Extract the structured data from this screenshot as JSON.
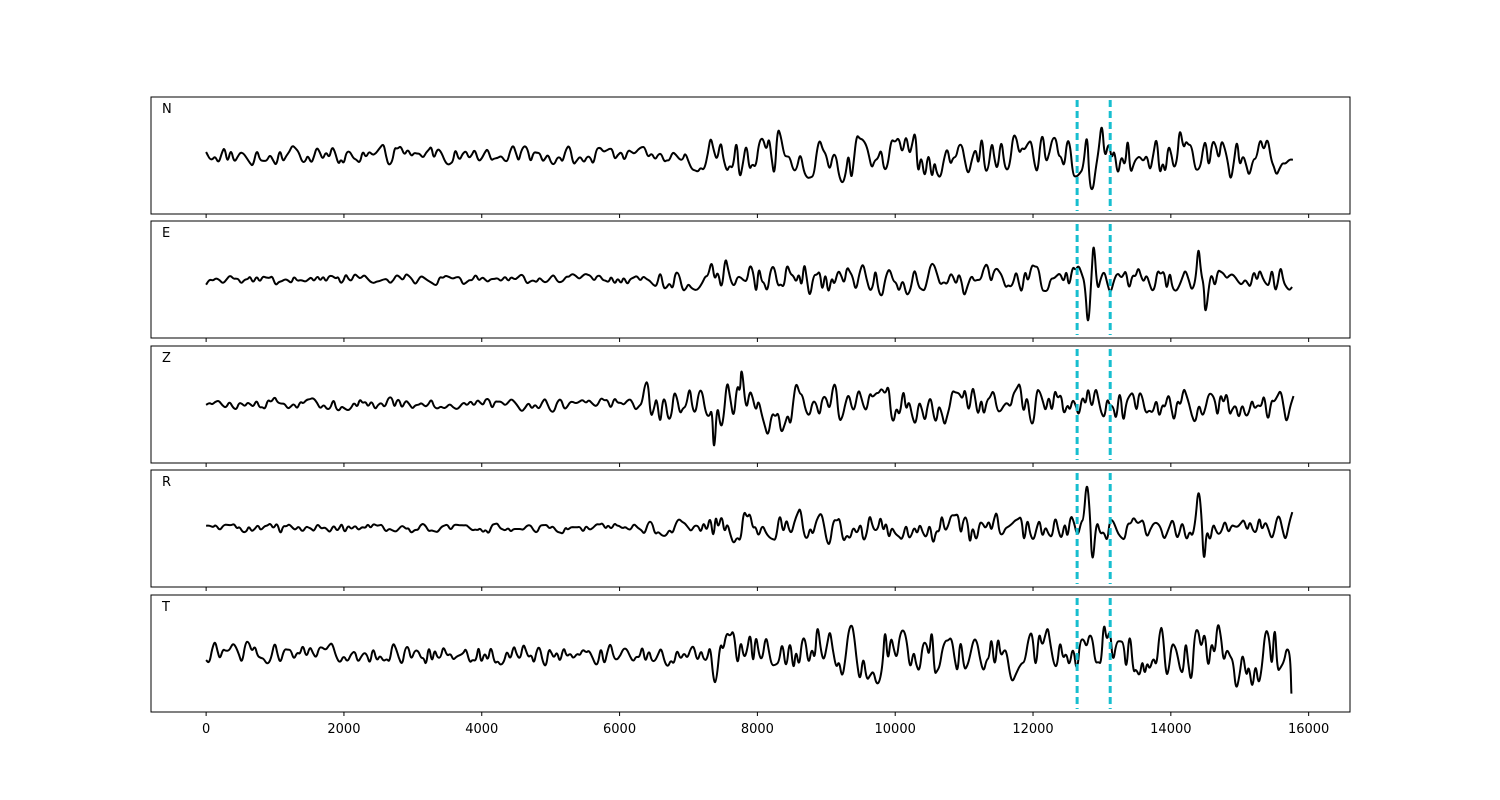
{
  "chart_data": {
    "type": "line",
    "title": "",
    "xlabel": "",
    "ylabel": "",
    "xlim": [
      -800,
      16600
    ],
    "x_ticks": [
      0,
      2000,
      4000,
      6000,
      8000,
      10000,
      12000,
      14000,
      16000
    ],
    "tick_labels": [
      "0",
      "2000",
      "4000",
      "6000",
      "8000",
      "10000",
      "12000",
      "14000",
      "16000"
    ],
    "x_range": [
      0,
      15800
    ],
    "grid": false,
    "legend": "none",
    "markers": {
      "x": [
        12640,
        13120
      ],
      "color": "#17becf",
      "style": "dashed"
    },
    "panels": [
      {
        "label": "N",
        "ylim": [
          -1,
          1
        ],
        "segments": [
          {
            "x": [
              0,
              7000
            ],
            "amplitude": 0.22
          },
          {
            "x": [
              7000,
              12600
            ],
            "amplitude": 0.55
          },
          {
            "x": [
              12600,
              13300
            ],
            "amplitude": 0.75
          },
          {
            "x": [
              13300,
              15800
            ],
            "amplitude": 0.55
          }
        ],
        "events": []
      },
      {
        "label": "E",
        "ylim": [
          -1,
          1
        ],
        "segments": [
          {
            "x": [
              0,
              6300
            ],
            "amplitude": 0.12
          },
          {
            "x": [
              6300,
              7300
            ],
            "amplitude": 0.25
          },
          {
            "x": [
              7300,
              9200
            ],
            "amplitude": 0.45
          },
          {
            "x": [
              9200,
              12600
            ],
            "amplitude": 0.35
          },
          {
            "x": [
              12600,
              15800
            ],
            "amplitude": 0.3
          }
        ],
        "events": [
          {
            "x": 12800,
            "value": -0.95
          },
          {
            "x": 12880,
            "value": 0.75
          },
          {
            "x": 14400,
            "value": 0.65
          },
          {
            "x": 14500,
            "value": -0.7
          }
        ]
      },
      {
        "label": "Z",
        "ylim": [
          -1,
          1
        ],
        "segments": [
          {
            "x": [
              0,
              6200
            ],
            "amplitude": 0.15
          },
          {
            "x": [
              6200,
              7300
            ],
            "amplitude": 0.45
          },
          {
            "x": [
              7300,
              8800
            ],
            "amplitude": 0.65
          },
          {
            "x": [
              8800,
              15800
            ],
            "amplitude": 0.45
          }
        ],
        "events": [
          {
            "x": 7370,
            "value": -0.95
          },
          {
            "x": 7770,
            "value": 0.75
          }
        ]
      },
      {
        "label": "R",
        "ylim": [
          -1,
          1
        ],
        "segments": [
          {
            "x": [
              0,
              6300
            ],
            "amplitude": 0.12
          },
          {
            "x": [
              6300,
              7300
            ],
            "amplitude": 0.22
          },
          {
            "x": [
              7300,
              9200
            ],
            "amplitude": 0.42
          },
          {
            "x": [
              9200,
              12600
            ],
            "amplitude": 0.35
          },
          {
            "x": [
              12600,
              15800
            ],
            "amplitude": 0.3
          }
        ],
        "events": [
          {
            "x": 12780,
            "value": 0.9
          },
          {
            "x": 12860,
            "value": -0.75
          },
          {
            "x": 14400,
            "value": 0.75
          },
          {
            "x": 14480,
            "value": -0.7
          }
        ]
      },
      {
        "label": "T",
        "ylim": [
          -1,
          1
        ],
        "segments": [
          {
            "x": [
              0,
              7000
            ],
            "amplitude": 0.25
          },
          {
            "x": [
              7000,
              12600
            ],
            "amplitude": 0.65
          },
          {
            "x": [
              12600,
              15800
            ],
            "amplitude": 0.7
          }
        ],
        "events": [
          {
            "x": 15750,
            "value": -0.7
          }
        ]
      }
    ]
  }
}
